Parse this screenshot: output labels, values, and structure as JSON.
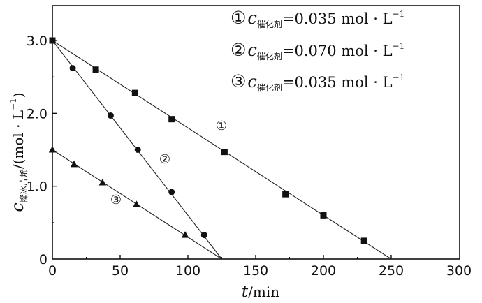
{
  "chart_data": {
    "type": "line",
    "xlabel": "t/min",
    "ylabel": "c降冰片烯/(mol·L⁻¹)",
    "xlim": [
      0,
      300
    ],
    "ylim": [
      0,
      3.5
    ],
    "x_ticks": [
      "0",
      "50",
      "100",
      "150",
      "200",
      "250",
      "300"
    ],
    "y_ticks": [
      "0",
      "1.0",
      "2.0",
      "3.0"
    ],
    "grid": false,
    "legend_position": "top-right",
    "series": [
      {
        "name": "①c催化剂=0.035 mol·L⁻¹",
        "tag": "①",
        "marker": "square",
        "points": [
          [
            0,
            3.0
          ],
          [
            32,
            2.6
          ],
          [
            61,
            2.28
          ],
          [
            88,
            1.92
          ],
          [
            127,
            1.47
          ],
          [
            172,
            0.89
          ],
          [
            200,
            0.6
          ],
          [
            230,
            0.25
          ]
        ],
        "fit_line": [
          [
            0,
            3.0
          ],
          [
            250,
            0.0
          ]
        ]
      },
      {
        "name": "②c催化剂=0.070 mol·L⁻¹",
        "tag": "②",
        "marker": "circle",
        "points": [
          [
            0,
            3.0
          ],
          [
            15,
            2.62
          ],
          [
            43,
            1.97
          ],
          [
            63,
            1.5
          ],
          [
            88,
            0.92
          ],
          [
            112,
            0.33
          ]
        ],
        "fit_line": [
          [
            0,
            3.0
          ],
          [
            125,
            0.0
          ]
        ]
      },
      {
        "name": "③c催化剂=0.035 mol·L⁻¹",
        "tag": "③",
        "marker": "triangle",
        "points": [
          [
            0,
            1.5
          ],
          [
            16,
            1.3
          ],
          [
            37,
            1.05
          ],
          [
            62,
            0.75
          ],
          [
            98,
            0.33
          ]
        ],
        "fit_line": [
          [
            0,
            1.5
          ],
          [
            125,
            0.0
          ]
        ]
      }
    ],
    "legend": [
      {
        "num": "①",
        "c": "c",
        "sub": "催化剂",
        "rest": "=0.035 mol · L",
        "sup": "−1"
      },
      {
        "num": "②",
        "c": "c",
        "sub": "催化剂",
        "rest": "=0.070 mol · L",
        "sup": "−1"
      },
      {
        "num": "③",
        "c": "c",
        "sub": "催化剂",
        "rest": "=0.035 mol · L",
        "sup": "−1"
      }
    ],
    "ylabel_parts": {
      "c": "c",
      "sub": "降冰片烯",
      "rest": "/(mol · L",
      "sup": "−1",
      "close": ")"
    },
    "xlabel_parts": {
      "t": "t",
      "rest": "/min"
    }
  }
}
